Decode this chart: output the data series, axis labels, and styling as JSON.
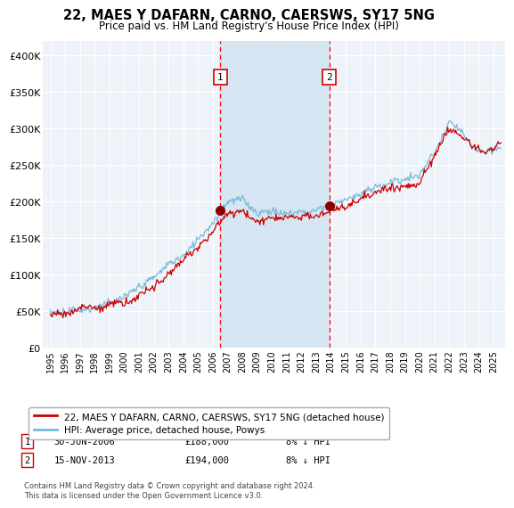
{
  "title": "22, MAES Y DAFARN, CARNO, CAERSWS, SY17 5NG",
  "subtitle": "Price paid vs. HM Land Registry's House Price Index (HPI)",
  "hpi_color": "#7ab8d9",
  "price_color": "#cc0000",
  "background_color": "#ffffff",
  "plot_bg_color": "#eef3fa",
  "grid_color": "#ffffff",
  "span_color": "#cce0f0",
  "sale1_date": 2006.5,
  "sale1_price": 188000,
  "sale2_date": 2013.88,
  "sale2_price": 194000,
  "ylim": [
    0,
    420000
  ],
  "xlim": [
    1994.5,
    2025.8
  ],
  "yticks": [
    0,
    50000,
    100000,
    150000,
    200000,
    250000,
    300000,
    350000,
    400000
  ],
  "ytick_labels": [
    "£0",
    "£50K",
    "£100K",
    "£150K",
    "£200K",
    "£250K",
    "£300K",
    "£350K",
    "£400K"
  ],
  "xticks": [
    1995,
    1996,
    1997,
    1998,
    1999,
    2000,
    2001,
    2002,
    2003,
    2004,
    2005,
    2006,
    2007,
    2008,
    2009,
    2010,
    2011,
    2012,
    2013,
    2014,
    2015,
    2016,
    2017,
    2018,
    2019,
    2020,
    2021,
    2022,
    2023,
    2024,
    2025
  ],
  "legend_line1": "22, MAES Y DAFARN, CARNO, CAERSWS, SY17 5NG (detached house)",
  "legend_line2": "HPI: Average price, detached house, Powys",
  "fn1_num": "1",
  "fn1_date": "30-JUN-2006",
  "fn1_price": "£188,000",
  "fn1_hpi": "8% ↓ HPI",
  "fn2_num": "2",
  "fn2_date": "15-NOV-2013",
  "fn2_price": "£194,000",
  "fn2_hpi": "8% ↓ HPI",
  "copyright": "Contains HM Land Registry data © Crown copyright and database right 2024.\nThis data is licensed under the Open Government Licence v3.0."
}
